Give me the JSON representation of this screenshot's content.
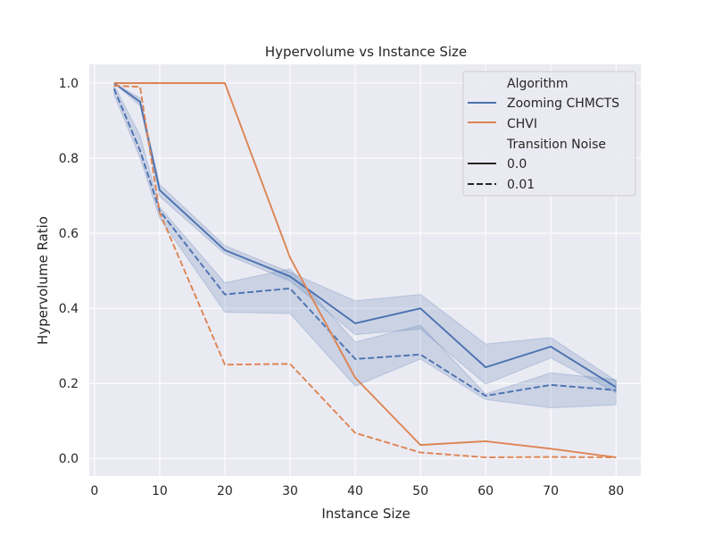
{
  "chart_data": {
    "type": "line",
    "title": "Hypervolume vs Instance Size",
    "xlabel": "Instance Size",
    "ylabel": "Hypervolume Ratio",
    "xlim": [
      -0.8,
      83.8
    ],
    "ylim": [
      -0.047,
      1.05
    ],
    "xticks": [
      0,
      10,
      20,
      30,
      40,
      50,
      60,
      70,
      80
    ],
    "xtick_labels": [
      "0",
      "10",
      "20",
      "30",
      "40",
      "50",
      "60",
      "70",
      "80"
    ],
    "yticks": [
      0.0,
      0.2,
      0.4,
      0.6,
      0.8,
      1.0
    ],
    "ytick_labels": [
      "0.0",
      "0.2",
      "0.4",
      "0.6",
      "0.8",
      "1.0"
    ],
    "grid": true,
    "colors": {
      "background": "#eaeaf2",
      "grid": "#ffffff",
      "zooming": "#4c72b0",
      "chvi": "#dd8452",
      "band": "#4c72b0"
    },
    "legend": {
      "position": "top-right",
      "hue_title": "Algorithm",
      "style_title": "Transition Noise",
      "entries": [
        {
          "label": "Zooming CHMCTS",
          "kind": "hue",
          "series": "zooming"
        },
        {
          "label": "CHVI",
          "kind": "hue",
          "series": "chvi"
        },
        {
          "label": "0.0",
          "kind": "style",
          "dash": "solid"
        },
        {
          "label": "0.01",
          "kind": "style",
          "dash": "dashed"
        }
      ]
    },
    "series": [
      {
        "name": "Zooming CHMCTS",
        "noise": "0.0",
        "color_key": "zooming",
        "dash": "solid",
        "x": [
          3,
          7,
          10,
          20,
          30,
          40,
          50,
          60,
          70,
          80
        ],
        "y": [
          1.0,
          0.95,
          0.715,
          0.555,
          0.485,
          0.36,
          0.4,
          0.243,
          0.298,
          0.19
        ],
        "ci_low": [
          1.0,
          0.94,
          0.698,
          0.545,
          0.473,
          0.33,
          0.345,
          0.198,
          0.268,
          0.175
        ],
        "ci_high": [
          1.0,
          0.96,
          0.73,
          0.567,
          0.496,
          0.42,
          0.437,
          0.305,
          0.322,
          0.207
        ]
      },
      {
        "name": "Zooming CHMCTS",
        "noise": "0.01",
        "color_key": "zooming",
        "dash": "dashed",
        "x": [
          3,
          7,
          10,
          20,
          30,
          40,
          50,
          60,
          70,
          80
        ],
        "y": [
          0.985,
          0.82,
          0.66,
          0.437,
          0.453,
          0.265,
          0.277,
          0.167,
          0.196,
          0.182
        ],
        "ci_low": [
          0.97,
          0.8,
          0.64,
          0.39,
          0.386,
          0.193,
          0.265,
          0.157,
          0.135,
          0.143
        ],
        "ci_high": [
          0.995,
          0.86,
          0.67,
          0.468,
          0.505,
          0.31,
          0.355,
          0.172,
          0.228,
          0.21
        ]
      },
      {
        "name": "CHVI",
        "noise": "0.0",
        "color_key": "chvi",
        "dash": "solid",
        "x": [
          3,
          10,
          20,
          30,
          40,
          50,
          60,
          70,
          80
        ],
        "y": [
          1.0,
          1.0,
          1.0,
          0.535,
          0.215,
          0.036,
          0.046,
          0.026,
          0.003
        ]
      },
      {
        "name": "CHVI",
        "noise": "0.01",
        "color_key": "chvi",
        "dash": "dashed",
        "x": [
          3,
          7,
          10,
          20,
          30,
          40,
          50,
          60,
          70,
          80
        ],
        "y": [
          0.993,
          0.99,
          0.655,
          0.25,
          0.252,
          0.068,
          0.016,
          0.003,
          0.004,
          0.003
        ]
      }
    ]
  }
}
